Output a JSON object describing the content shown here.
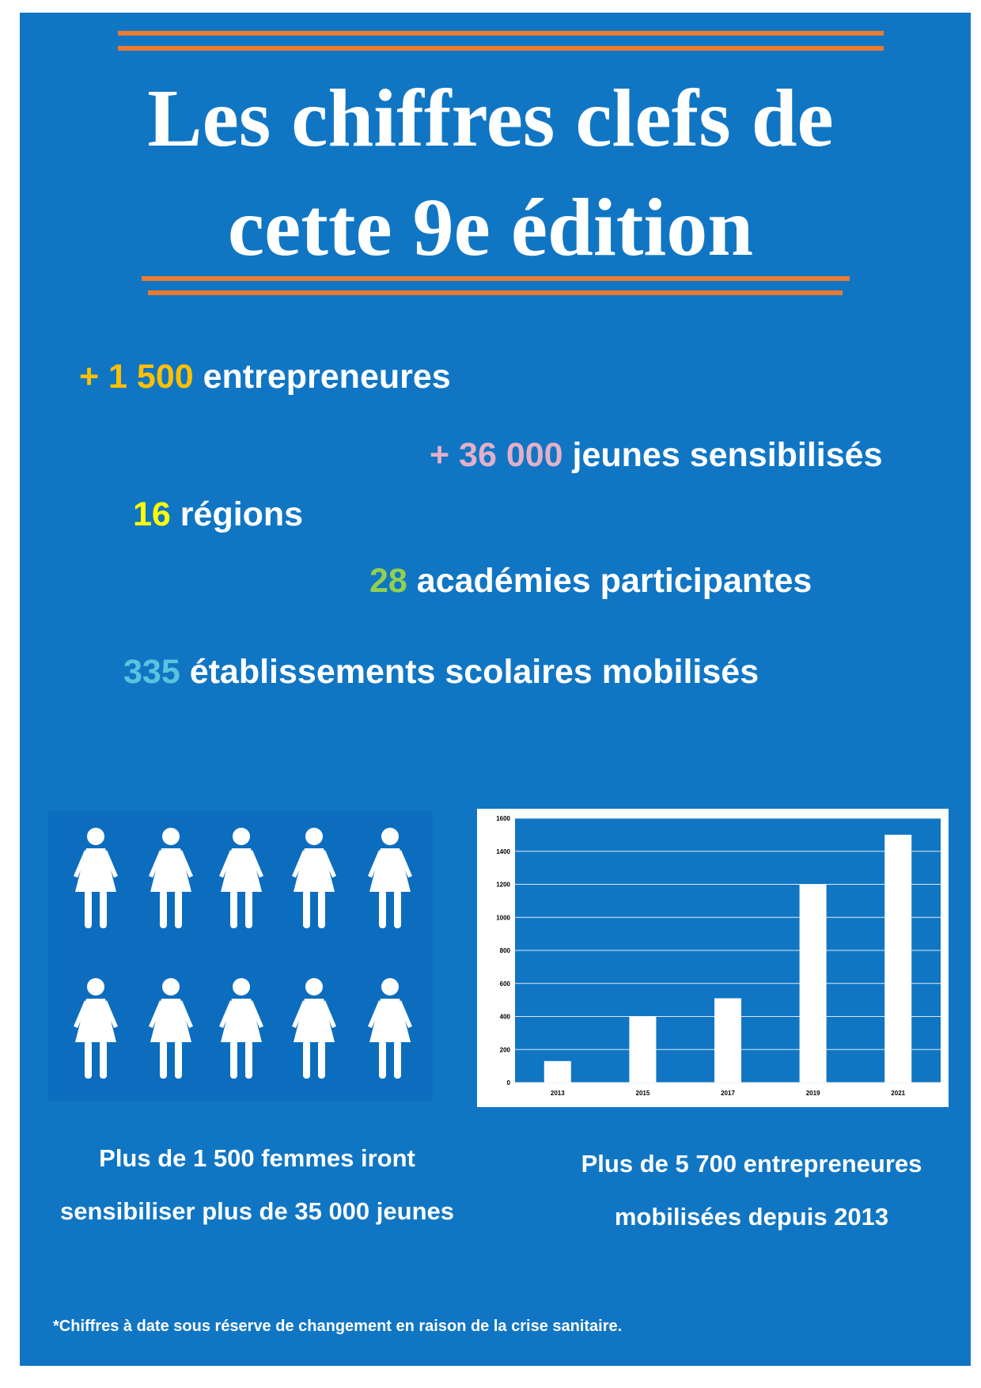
{
  "title": {
    "line1": "Les chiffres clefs de",
    "line2": "cette 9e édition"
  },
  "colors": {
    "background": "#1076c4",
    "accent_lines": "#ea7b31",
    "text": "#ffffff"
  },
  "stats": [
    {
      "number": "+ 1 500",
      "label": " entrepreneures",
      "color": "#ffc000"
    },
    {
      "number": "+ 36 000",
      "label": " jeunes sensibilisés",
      "color": "#e3afc9"
    },
    {
      "number": "16",
      "label": " régions",
      "color": "#ffff00"
    },
    {
      "number": "28",
      "label": " académies participantes",
      "color": "#92d050"
    },
    {
      "number": "335",
      "label": " établissements scolaires mobilisés",
      "color": "#5bc3de"
    }
  ],
  "women_pictogram": {
    "icon": "woman-icon",
    "count": 10
  },
  "captions": {
    "left": {
      "line1": "Plus de 1 500 femmes iront",
      "line2": "sensibiliser plus de 35 000 jeunes"
    },
    "right": {
      "line1": "Plus de 5 700 entrepreneures",
      "line2": "mobilisées depuis 2013"
    }
  },
  "footnote": "*Chiffres à date sous réserve de changement en raison de la crise sanitaire.",
  "chart_data": {
    "type": "bar",
    "categories": [
      "2013",
      "2015",
      "2017",
      "2019",
      "2021"
    ],
    "values": [
      130,
      400,
      510,
      1200,
      1500
    ],
    "ylim": [
      0,
      1600
    ],
    "yticks": [
      "0",
      "200",
      "400",
      "600",
      "800",
      "1000",
      "1200",
      "1400",
      "1600"
    ],
    "grid": true,
    "bar_color": "#ffffff",
    "plot_background": "#1076c4"
  }
}
